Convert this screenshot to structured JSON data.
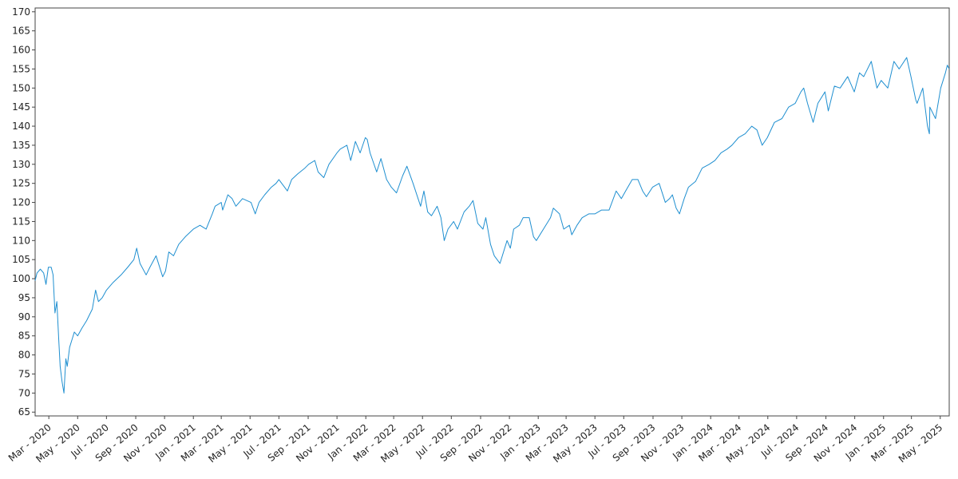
{
  "chart_data": {
    "type": "line",
    "title": "",
    "xlabel": "",
    "ylabel": "",
    "grid": false,
    "legend": "none",
    "xlim": [
      "2020-02-01",
      "2025-05-20"
    ],
    "ylim": [
      64,
      171
    ],
    "y_ticks": [
      65,
      70,
      75,
      80,
      85,
      90,
      95,
      100,
      105,
      110,
      115,
      120,
      125,
      130,
      135,
      140,
      145,
      150,
      155,
      160,
      165,
      170
    ],
    "x_ticks": [
      {
        "date": "2020-03-01",
        "label": "Mar - 2020"
      },
      {
        "date": "2020-05-01",
        "label": "May - 2020"
      },
      {
        "date": "2020-07-01",
        "label": "Jul - 2020"
      },
      {
        "date": "2020-09-01",
        "label": "Sep - 2020"
      },
      {
        "date": "2020-11-01",
        "label": "Nov - 2020"
      },
      {
        "date": "2021-01-01",
        "label": "Jan - 2021"
      },
      {
        "date": "2021-03-01",
        "label": "Mar - 2021"
      },
      {
        "date": "2021-05-01",
        "label": "May - 2021"
      },
      {
        "date": "2021-07-01",
        "label": "Jul - 2021"
      },
      {
        "date": "2021-09-01",
        "label": "Sep - 2021"
      },
      {
        "date": "2021-11-01",
        "label": "Nov - 2021"
      },
      {
        "date": "2022-01-01",
        "label": "Jan - 2022"
      },
      {
        "date": "2022-03-01",
        "label": "Mar - 2022"
      },
      {
        "date": "2022-05-01",
        "label": "May - 2022"
      },
      {
        "date": "2022-07-01",
        "label": "Jul - 2022"
      },
      {
        "date": "2022-09-01",
        "label": "Sep - 2022"
      },
      {
        "date": "2022-11-01",
        "label": "Nov - 2022"
      },
      {
        "date": "2023-01-01",
        "label": "Jan - 2023"
      },
      {
        "date": "2023-03-01",
        "label": "Mar - 2023"
      },
      {
        "date": "2023-05-01",
        "label": "May - 2023"
      },
      {
        "date": "2023-07-01",
        "label": "Jul - 2023"
      },
      {
        "date": "2023-09-01",
        "label": "Sep - 2023"
      },
      {
        "date": "2023-11-01",
        "label": "Nov - 2023"
      },
      {
        "date": "2024-01-01",
        "label": "Jan - 2024"
      },
      {
        "date": "2024-03-01",
        "label": "Mar - 2024"
      },
      {
        "date": "2024-05-01",
        "label": "May - 2024"
      },
      {
        "date": "2024-07-01",
        "label": "Jul - 2024"
      },
      {
        "date": "2024-09-01",
        "label": "Sep - 2024"
      },
      {
        "date": "2024-11-01",
        "label": "Nov - 2024"
      },
      {
        "date": "2025-01-01",
        "label": "Jan - 2025"
      },
      {
        "date": "2025-03-01",
        "label": "Mar - 2025"
      },
      {
        "date": "2025-05-01",
        "label": "May - 2025"
      }
    ],
    "series": [
      {
        "color": "#1f8fd0",
        "points": [
          [
            "2020-02-01",
            99.5
          ],
          [
            "2020-02-05",
            101.5
          ],
          [
            "2020-02-12",
            102.5
          ],
          [
            "2020-02-19",
            101.5
          ],
          [
            "2020-02-24",
            98.5
          ],
          [
            "2020-02-29",
            103
          ],
          [
            "2020-03-06",
            103
          ],
          [
            "2020-03-10",
            101
          ],
          [
            "2020-03-14",
            91
          ],
          [
            "2020-03-18",
            94
          ],
          [
            "2020-03-22",
            84
          ],
          [
            "2020-03-25",
            77
          ],
          [
            "2020-03-29",
            73
          ],
          [
            "2020-04-02",
            70
          ],
          [
            "2020-04-06",
            79
          ],
          [
            "2020-04-09",
            77
          ],
          [
            "2020-04-14",
            82
          ],
          [
            "2020-04-19",
            84
          ],
          [
            "2020-04-24",
            86
          ],
          [
            "2020-05-01",
            85
          ],
          [
            "2020-05-10",
            87
          ],
          [
            "2020-05-20",
            89
          ],
          [
            "2020-06-01",
            92
          ],
          [
            "2020-06-08",
            97
          ],
          [
            "2020-06-14",
            94
          ],
          [
            "2020-06-22",
            95
          ],
          [
            "2020-07-01",
            97
          ],
          [
            "2020-07-15",
            99
          ],
          [
            "2020-08-01",
            101
          ],
          [
            "2020-08-15",
            103
          ],
          [
            "2020-08-28",
            105
          ],
          [
            "2020-09-03",
            108
          ],
          [
            "2020-09-10",
            104
          ],
          [
            "2020-09-23",
            101
          ],
          [
            "2020-10-01",
            103
          ],
          [
            "2020-10-14",
            106
          ],
          [
            "2020-10-28",
            100.5
          ],
          [
            "2020-11-03",
            102
          ],
          [
            "2020-11-10",
            107
          ],
          [
            "2020-11-20",
            106
          ],
          [
            "2020-12-01",
            109
          ],
          [
            "2020-12-15",
            111
          ],
          [
            "2021-01-01",
            113
          ],
          [
            "2021-01-15",
            114
          ],
          [
            "2021-01-28",
            113
          ],
          [
            "2021-02-10",
            117
          ],
          [
            "2021-02-16",
            119
          ],
          [
            "2021-03-01",
            120
          ],
          [
            "2021-03-04",
            118
          ],
          [
            "2021-03-15",
            122
          ],
          [
            "2021-03-24",
            121
          ],
          [
            "2021-04-01",
            119
          ],
          [
            "2021-04-15",
            121
          ],
          [
            "2021-05-03",
            120
          ],
          [
            "2021-05-12",
            117
          ],
          [
            "2021-05-20",
            120
          ],
          [
            "2021-06-01",
            122
          ],
          [
            "2021-06-15",
            124
          ],
          [
            "2021-06-25",
            125
          ],
          [
            "2021-07-01",
            126
          ],
          [
            "2021-07-19",
            123
          ],
          [
            "2021-07-28",
            126
          ],
          [
            "2021-08-10",
            127.5
          ],
          [
            "2021-08-25",
            129
          ],
          [
            "2021-09-02",
            130
          ],
          [
            "2021-09-15",
            131
          ],
          [
            "2021-09-22",
            128
          ],
          [
            "2021-10-04",
            126.5
          ],
          [
            "2021-10-15",
            130
          ],
          [
            "2021-11-01",
            133
          ],
          [
            "2021-11-08",
            134
          ],
          [
            "2021-11-22",
            135
          ],
          [
            "2021-11-30",
            131
          ],
          [
            "2021-12-10",
            136
          ],
          [
            "2021-12-20",
            133
          ],
          [
            "2021-12-31",
            137
          ],
          [
            "2022-01-04",
            136.5
          ],
          [
            "2022-01-10",
            133
          ],
          [
            "2022-01-24",
            128
          ],
          [
            "2022-02-02",
            131.5
          ],
          [
            "2022-02-14",
            126
          ],
          [
            "2022-02-24",
            124
          ],
          [
            "2022-03-07",
            122.5
          ],
          [
            "2022-03-20",
            127
          ],
          [
            "2022-03-29",
            129.5
          ],
          [
            "2022-04-11",
            125
          ],
          [
            "2022-04-27",
            119
          ],
          [
            "2022-05-04",
            123
          ],
          [
            "2022-05-12",
            117.5
          ],
          [
            "2022-05-20",
            116.5
          ],
          [
            "2022-06-01",
            119
          ],
          [
            "2022-06-09",
            116
          ],
          [
            "2022-06-16",
            110
          ],
          [
            "2022-06-24",
            113
          ],
          [
            "2022-07-06",
            115
          ],
          [
            "2022-07-14",
            113
          ],
          [
            "2022-07-28",
            117.5
          ],
          [
            "2022-08-08",
            119
          ],
          [
            "2022-08-16",
            120.5
          ],
          [
            "2022-08-26",
            114.5
          ],
          [
            "2022-09-06",
            113
          ],
          [
            "2022-09-12",
            116
          ],
          [
            "2022-09-22",
            109
          ],
          [
            "2022-09-30",
            106
          ],
          [
            "2022-10-12",
            104
          ],
          [
            "2022-10-27",
            110
          ],
          [
            "2022-11-03",
            108
          ],
          [
            "2022-11-10",
            113
          ],
          [
            "2022-11-22",
            114
          ],
          [
            "2022-11-30",
            116
          ],
          [
            "2022-12-13",
            116
          ],
          [
            "2022-12-22",
            111
          ],
          [
            "2022-12-28",
            110
          ],
          [
            "2023-01-12",
            113
          ],
          [
            "2023-01-27",
            116
          ],
          [
            "2023-02-02",
            118.5
          ],
          [
            "2023-02-15",
            117
          ],
          [
            "2023-02-24",
            113
          ],
          [
            "2023-03-08",
            114
          ],
          [
            "2023-03-13",
            111.5
          ],
          [
            "2023-03-24",
            114
          ],
          [
            "2023-04-04",
            116
          ],
          [
            "2023-04-18",
            117
          ],
          [
            "2023-05-01",
            117
          ],
          [
            "2023-05-15",
            118
          ],
          [
            "2023-05-31",
            118
          ],
          [
            "2023-06-15",
            123
          ],
          [
            "2023-06-26",
            121
          ],
          [
            "2023-07-05",
            123
          ],
          [
            "2023-07-19",
            126
          ],
          [
            "2023-07-31",
            126
          ],
          [
            "2023-08-10",
            123
          ],
          [
            "2023-08-18",
            121.5
          ],
          [
            "2023-08-31",
            124
          ],
          [
            "2023-09-14",
            125
          ],
          [
            "2023-09-27",
            120
          ],
          [
            "2023-10-06",
            121
          ],
          [
            "2023-10-12",
            122
          ],
          [
            "2023-10-20",
            118.5
          ],
          [
            "2023-10-27",
            117
          ],
          [
            "2023-11-06",
            121
          ],
          [
            "2023-11-15",
            124
          ],
          [
            "2023-11-30",
            125.5
          ],
          [
            "2023-12-14",
            129
          ],
          [
            "2023-12-29",
            130
          ],
          [
            "2024-01-10",
            131
          ],
          [
            "2024-01-23",
            133
          ],
          [
            "2024-02-05",
            134
          ],
          [
            "2024-02-15",
            135
          ],
          [
            "2024-02-29",
            137
          ],
          [
            "2024-03-14",
            138
          ],
          [
            "2024-03-28",
            140
          ],
          [
            "2024-04-08",
            139
          ],
          [
            "2024-04-19",
            135
          ],
          [
            "2024-04-30",
            137
          ],
          [
            "2024-05-15",
            141
          ],
          [
            "2024-05-31",
            142
          ],
          [
            "2024-06-14",
            145
          ],
          [
            "2024-06-28",
            146
          ],
          [
            "2024-07-10",
            149
          ],
          [
            "2024-07-16",
            150
          ],
          [
            "2024-07-24",
            146
          ],
          [
            "2024-08-05",
            141
          ],
          [
            "2024-08-15",
            146
          ],
          [
            "2024-08-30",
            149
          ],
          [
            "2024-09-06",
            144
          ],
          [
            "2024-09-19",
            150.5
          ],
          [
            "2024-10-01",
            150
          ],
          [
            "2024-10-17",
            153
          ],
          [
            "2024-10-31",
            149
          ],
          [
            "2024-11-11",
            154
          ],
          [
            "2024-11-20",
            153
          ],
          [
            "2024-12-06",
            157
          ],
          [
            "2024-12-18",
            150
          ],
          [
            "2024-12-27",
            152
          ],
          [
            "2025-01-10",
            150
          ],
          [
            "2025-01-23",
            157
          ],
          [
            "2025-02-03",
            155
          ],
          [
            "2025-02-19",
            158
          ],
          [
            "2025-02-28",
            153
          ],
          [
            "2025-03-10",
            147
          ],
          [
            "2025-03-13",
            146
          ],
          [
            "2025-03-25",
            150
          ],
          [
            "2025-04-04",
            140
          ],
          [
            "2025-04-08",
            138
          ],
          [
            "2025-04-09",
            145
          ],
          [
            "2025-04-21",
            142
          ],
          [
            "2025-05-02",
            150
          ],
          [
            "2025-05-12",
            154
          ],
          [
            "2025-05-16",
            156
          ],
          [
            "2025-05-20",
            155
          ]
        ]
      }
    ]
  }
}
